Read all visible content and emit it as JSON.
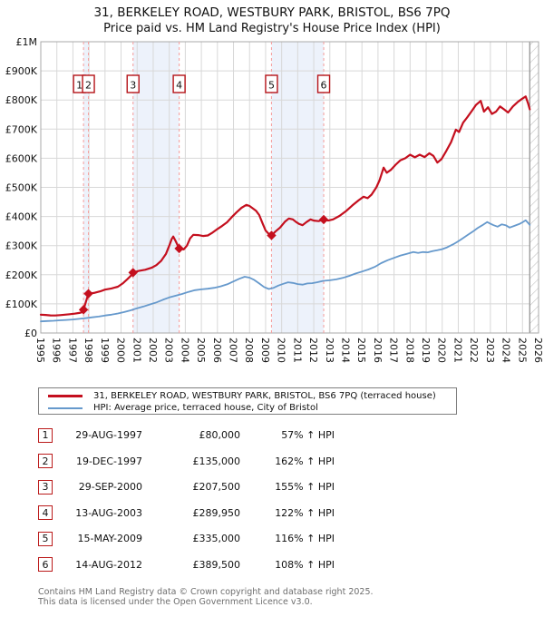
{
  "header": {
    "title": "31, BERKELEY ROAD, WESTBURY PARK, BRISTOL, BS6 7PQ",
    "subtitle": "Price paid vs. HM Land Registry's House Price Index (HPI)"
  },
  "legend": {
    "series1": "31, BERKELEY ROAD, WESTBURY PARK, BRISTOL, BS6 7PQ (terraced house)",
    "series2": "HPI: Average price, terraced house, City of Bristol"
  },
  "transactions": [
    {
      "n": "1",
      "date": "29-AUG-1997",
      "price": "£80,000",
      "vs_hpi": "57% ↑ HPI"
    },
    {
      "n": "2",
      "date": "19-DEC-1997",
      "price": "£135,000",
      "vs_hpi": "162% ↑ HPI"
    },
    {
      "n": "3",
      "date": "29-SEP-2000",
      "price": "£207,500",
      "vs_hpi": "155% ↑ HPI"
    },
    {
      "n": "4",
      "date": "13-AUG-2003",
      "price": "£289,950",
      "vs_hpi": "122% ↑ HPI"
    },
    {
      "n": "5",
      "date": "15-MAY-2009",
      "price": "£335,000",
      "vs_hpi": "116% ↑ HPI"
    },
    {
      "n": "6",
      "date": "14-AUG-2012",
      "price": "£389,500",
      "vs_hpi": "108% ↑ HPI"
    }
  ],
  "footer": {
    "line1": "Contains HM Land Registry data © Crown copyright and database right 2025.",
    "line2": "This data is licensed under the Open Government Licence v3.0."
  },
  "chart_data": {
    "type": "line",
    "x_axis": {
      "min": 1995,
      "max": 2026,
      "tick_years": [
        1995,
        1996,
        1997,
        1998,
        1999,
        2000,
        2001,
        2002,
        2003,
        2004,
        2005,
        2006,
        2007,
        2008,
        2009,
        2010,
        2011,
        2012,
        2013,
        2014,
        2015,
        2016,
        2017,
        2018,
        2019,
        2020,
        2021,
        2022,
        2023,
        2024,
        2025,
        2026
      ]
    },
    "y_axis": {
      "min": 0,
      "max": 1000000,
      "tick_step": 100000,
      "labels": [
        "£0",
        "£100K",
        "£200K",
        "£300K",
        "£400K",
        "£500K",
        "£600K",
        "£700K",
        "£800K",
        "£900K",
        "£1M"
      ]
    },
    "colors": {
      "property_line": "#c40f1e",
      "hpi_line": "#6699cc",
      "sale_marker": "#c40f1e",
      "flag_border": "#b51318",
      "dashed_line": "#f4a2a2",
      "shaded_band": "#edf2fb",
      "gridline": "#d8d8d8",
      "plot_border": "#a9a9a9",
      "hatch": "#c4c4c4",
      "hatch_edge": "#8c8c8c"
    },
    "sales": [
      {
        "n": "1",
        "year": 1997.66,
        "price": 80000
      },
      {
        "n": "2",
        "year": 1997.967,
        "price": 135000
      },
      {
        "n": "3",
        "year": 2000.745,
        "price": 207500
      },
      {
        "n": "4",
        "year": 2003.617,
        "price": 289950
      },
      {
        "n": "5",
        "year": 2009.368,
        "price": 335000
      },
      {
        "n": "6",
        "year": 2012.619,
        "price": 389500
      }
    ],
    "shaded_periods": [
      [
        1997.66,
        1997.967
      ],
      [
        2000.745,
        2003.617
      ],
      [
        2009.368,
        2012.619
      ]
    ],
    "future_hatch_start": 2025.45,
    "series": [
      {
        "name": "price-paid",
        "color": "#c40f1e",
        "width": 2.2,
        "points": [
          [
            1995.0,
            63000
          ],
          [
            1995.3,
            62000
          ],
          [
            1995.6,
            60500
          ],
          [
            1995.9,
            60000
          ],
          [
            1996.2,
            61500
          ],
          [
            1996.5,
            63000
          ],
          [
            1996.8,
            64500
          ],
          [
            1997.1,
            66500
          ],
          [
            1997.4,
            69000
          ],
          [
            1997.6,
            72000
          ],
          [
            1997.66,
            80000
          ],
          [
            1997.967,
            135000
          ],
          [
            1998.3,
            137500
          ],
          [
            1998.7,
            143000
          ],
          [
            1999.0,
            149000
          ],
          [
            1999.4,
            153000
          ],
          [
            1999.8,
            159000
          ],
          [
            2000.1,
            170000
          ],
          [
            2000.4,
            185000
          ],
          [
            2000.6,
            196000
          ],
          [
            2000.745,
            207500
          ],
          [
            2001.1,
            213000
          ],
          [
            2001.5,
            217000
          ],
          [
            2001.9,
            224000
          ],
          [
            2002.2,
            233000
          ],
          [
            2002.5,
            248000
          ],
          [
            2002.8,
            272000
          ],
          [
            2003.0,
            300000
          ],
          [
            2003.15,
            322000
          ],
          [
            2003.25,
            331000
          ],
          [
            2003.4,
            315000
          ],
          [
            2003.617,
            289950
          ],
          [
            2003.9,
            287000
          ],
          [
            2004.1,
            300000
          ],
          [
            2004.3,
            325000
          ],
          [
            2004.5,
            337000
          ],
          [
            2004.8,
            336000
          ],
          [
            2005.1,
            333000
          ],
          [
            2005.4,
            335000
          ],
          [
            2005.7,
            345000
          ],
          [
            2006.0,
            357000
          ],
          [
            2006.3,
            368000
          ],
          [
            2006.6,
            380000
          ],
          [
            2006.9,
            398000
          ],
          [
            2007.2,
            415000
          ],
          [
            2007.5,
            430000
          ],
          [
            2007.8,
            440000
          ],
          [
            2008.0,
            436000
          ],
          [
            2008.2,
            428000
          ],
          [
            2008.4,
            420000
          ],
          [
            2008.6,
            405000
          ],
          [
            2008.8,
            378000
          ],
          [
            2009.0,
            352000
          ],
          [
            2009.2,
            340000
          ],
          [
            2009.368,
            335000
          ],
          [
            2009.6,
            348000
          ],
          [
            2009.9,
            362000
          ],
          [
            2010.2,
            382000
          ],
          [
            2010.45,
            393000
          ],
          [
            2010.7,
            390000
          ],
          [
            2010.9,
            381000
          ],
          [
            2011.1,
            374000
          ],
          [
            2011.3,
            370000
          ],
          [
            2011.55,
            381000
          ],
          [
            2011.8,
            390000
          ],
          [
            2012.0,
            386000
          ],
          [
            2012.3,
            384000
          ],
          [
            2012.619,
            389500
          ],
          [
            2012.9,
            386000
          ],
          [
            2013.2,
            390000
          ],
          [
            2013.6,
            402000
          ],
          [
            2014.0,
            418000
          ],
          [
            2014.4,
            438000
          ],
          [
            2014.8,
            456000
          ],
          [
            2015.1,
            468000
          ],
          [
            2015.35,
            463000
          ],
          [
            2015.6,
            475000
          ],
          [
            2015.9,
            500000
          ],
          [
            2016.1,
            525000
          ],
          [
            2016.35,
            568000
          ],
          [
            2016.55,
            550000
          ],
          [
            2016.8,
            560000
          ],
          [
            2017.1,
            578000
          ],
          [
            2017.4,
            593000
          ],
          [
            2017.7,
            600000
          ],
          [
            2018.0,
            612000
          ],
          [
            2018.3,
            603000
          ],
          [
            2018.6,
            612000
          ],
          [
            2018.9,
            604000
          ],
          [
            2019.2,
            617000
          ],
          [
            2019.45,
            608000
          ],
          [
            2019.7,
            585000
          ],
          [
            2019.95,
            597000
          ],
          [
            2020.25,
            625000
          ],
          [
            2020.55,
            655000
          ],
          [
            2020.85,
            698000
          ],
          [
            2021.05,
            690000
          ],
          [
            2021.3,
            722000
          ],
          [
            2021.55,
            740000
          ],
          [
            2021.85,
            763000
          ],
          [
            2022.1,
            783000
          ],
          [
            2022.4,
            797000
          ],
          [
            2022.6,
            760000
          ],
          [
            2022.85,
            775000
          ],
          [
            2023.1,
            752000
          ],
          [
            2023.35,
            760000
          ],
          [
            2023.6,
            778000
          ],
          [
            2023.85,
            768000
          ],
          [
            2024.1,
            757000
          ],
          [
            2024.4,
            778000
          ],
          [
            2024.7,
            793000
          ],
          [
            2024.95,
            803000
          ],
          [
            2025.2,
            812000
          ],
          [
            2025.35,
            788000
          ],
          [
            2025.45,
            768000
          ]
        ]
      },
      {
        "name": "hpi",
        "color": "#6699cc",
        "width": 1.8,
        "points": [
          [
            1995.0,
            40000
          ],
          [
            1995.4,
            41000
          ],
          [
            1995.8,
            42000
          ],
          [
            1996.2,
            43500
          ],
          [
            1996.6,
            45000
          ],
          [
            1997.0,
            46500
          ],
          [
            1997.4,
            48500
          ],
          [
            1997.8,
            51000
          ],
          [
            1998.2,
            54000
          ],
          [
            1998.6,
            56500
          ],
          [
            1999.0,
            60000
          ],
          [
            1999.4,
            63000
          ],
          [
            1999.8,
            67000
          ],
          [
            2000.2,
            72000
          ],
          [
            2000.6,
            78000
          ],
          [
            2001.0,
            85000
          ],
          [
            2001.4,
            91000
          ],
          [
            2001.8,
            98000
          ],
          [
            2002.2,
            105000
          ],
          [
            2002.6,
            114000
          ],
          [
            2003.0,
            122000
          ],
          [
            2003.4,
            128000
          ],
          [
            2003.8,
            134000
          ],
          [
            2004.2,
            141000
          ],
          [
            2004.6,
            147000
          ],
          [
            2005.0,
            150000
          ],
          [
            2005.4,
            152000
          ],
          [
            2005.8,
            155000
          ],
          [
            2006.2,
            160000
          ],
          [
            2006.6,
            167000
          ],
          [
            2007.0,
            177000
          ],
          [
            2007.35,
            186000
          ],
          [
            2007.7,
            193000
          ],
          [
            2008.0,
            190000
          ],
          [
            2008.3,
            182000
          ],
          [
            2008.6,
            170000
          ],
          [
            2008.9,
            158000
          ],
          [
            2009.2,
            151000
          ],
          [
            2009.5,
            155000
          ],
          [
            2009.8,
            163000
          ],
          [
            2010.1,
            169000
          ],
          [
            2010.4,
            174000
          ],
          [
            2010.7,
            172000
          ],
          [
            2011.0,
            168000
          ],
          [
            2011.3,
            166000
          ],
          [
            2011.6,
            170000
          ],
          [
            2011.9,
            171000
          ],
          [
            2012.2,
            174000
          ],
          [
            2012.6,
            179000
          ],
          [
            2013.0,
            181000
          ],
          [
            2013.4,
            184000
          ],
          [
            2013.8,
            189000
          ],
          [
            2014.2,
            196000
          ],
          [
            2014.6,
            204000
          ],
          [
            2015.0,
            211000
          ],
          [
            2015.4,
            218000
          ],
          [
            2015.8,
            227000
          ],
          [
            2016.2,
            240000
          ],
          [
            2016.6,
            250000
          ],
          [
            2017.0,
            258000
          ],
          [
            2017.4,
            266000
          ],
          [
            2017.8,
            272000
          ],
          [
            2018.2,
            278000
          ],
          [
            2018.5,
            275000
          ],
          [
            2018.8,
            278000
          ],
          [
            2019.1,
            277000
          ],
          [
            2019.4,
            281000
          ],
          [
            2019.7,
            284000
          ],
          [
            2020.0,
            288000
          ],
          [
            2020.3,
            294000
          ],
          [
            2020.7,
            305000
          ],
          [
            2021.0,
            315000
          ],
          [
            2021.3,
            326000
          ],
          [
            2021.6,
            337000
          ],
          [
            2021.9,
            348000
          ],
          [
            2022.2,
            360000
          ],
          [
            2022.5,
            370000
          ],
          [
            2022.8,
            381000
          ],
          [
            2023.0,
            375000
          ],
          [
            2023.2,
            370000
          ],
          [
            2023.45,
            365000
          ],
          [
            2023.7,
            373000
          ],
          [
            2023.95,
            370000
          ],
          [
            2024.2,
            362000
          ],
          [
            2024.5,
            368000
          ],
          [
            2024.8,
            374000
          ],
          [
            2025.0,
            380000
          ],
          [
            2025.2,
            387000
          ],
          [
            2025.35,
            378000
          ],
          [
            2025.45,
            371000
          ]
        ]
      }
    ]
  }
}
